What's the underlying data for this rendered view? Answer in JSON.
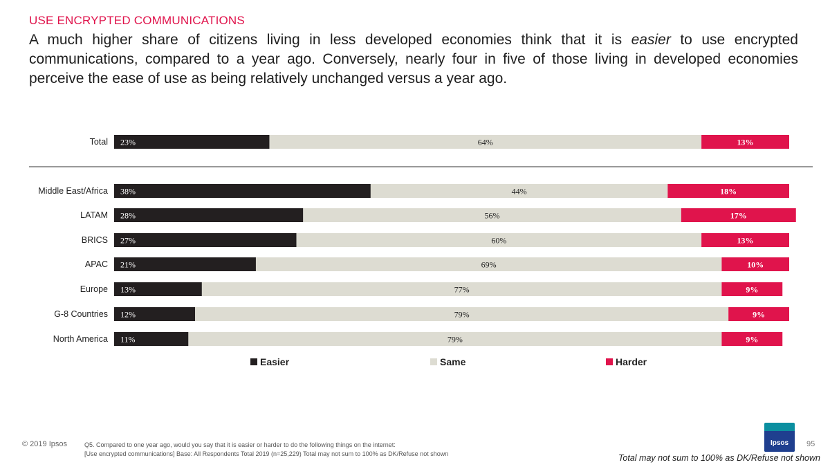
{
  "header": {
    "section_title": "USE ENCRYPTED COMMUNICATIONS",
    "headline_pre": "A much higher share of citizens living in less developed economies think that it is ",
    "headline_em": "easier",
    "headline_post": " to use encrypted communications, compared to a year ago. Conversely, nearly four in five of those living in developed economies perceive the ease of use as being relatively unchanged versus a year ago."
  },
  "chart_data": {
    "type": "bar",
    "stacked": true,
    "orientation": "horizontal",
    "categories": [
      "Total",
      "Middle East/Africa",
      "LATAM",
      "BRICS",
      "APAC",
      "Europe",
      "G-8 Countries",
      "North America"
    ],
    "series": [
      {
        "name": "Easier",
        "color": "#231f20",
        "values": [
          23,
          38,
          28,
          27,
          21,
          13,
          12,
          11
        ]
      },
      {
        "name": "Same",
        "color": "#dddcd2",
        "values": [
          64,
          44,
          56,
          60,
          69,
          77,
          79,
          79
        ]
      },
      {
        "name": "Harder",
        "color": "#e0144c",
        "values": [
          13,
          18,
          17,
          13,
          10,
          9,
          9,
          9
        ]
      }
    ],
    "value_suffix": "%",
    "legend_position": "bottom"
  },
  "footer": {
    "copyright": "© 2019 Ipsos",
    "question": "Q5. Compared to one year ago, would you say that it is easier or harder to do the following things on the internet:",
    "base": "[Use encrypted communications] Base: All Respondents Total  2019 (n=25,229) Total may not sum to 100% as DK/Refuse not shown",
    "page_number": "95",
    "note": "Total may not sum to 100% as DK/Refuse not shown",
    "logo_text": "Ipsos"
  },
  "colors": {
    "accent": "#e0144c",
    "easier": "#231f20",
    "same": "#dddcd2",
    "harder": "#e0144c"
  }
}
